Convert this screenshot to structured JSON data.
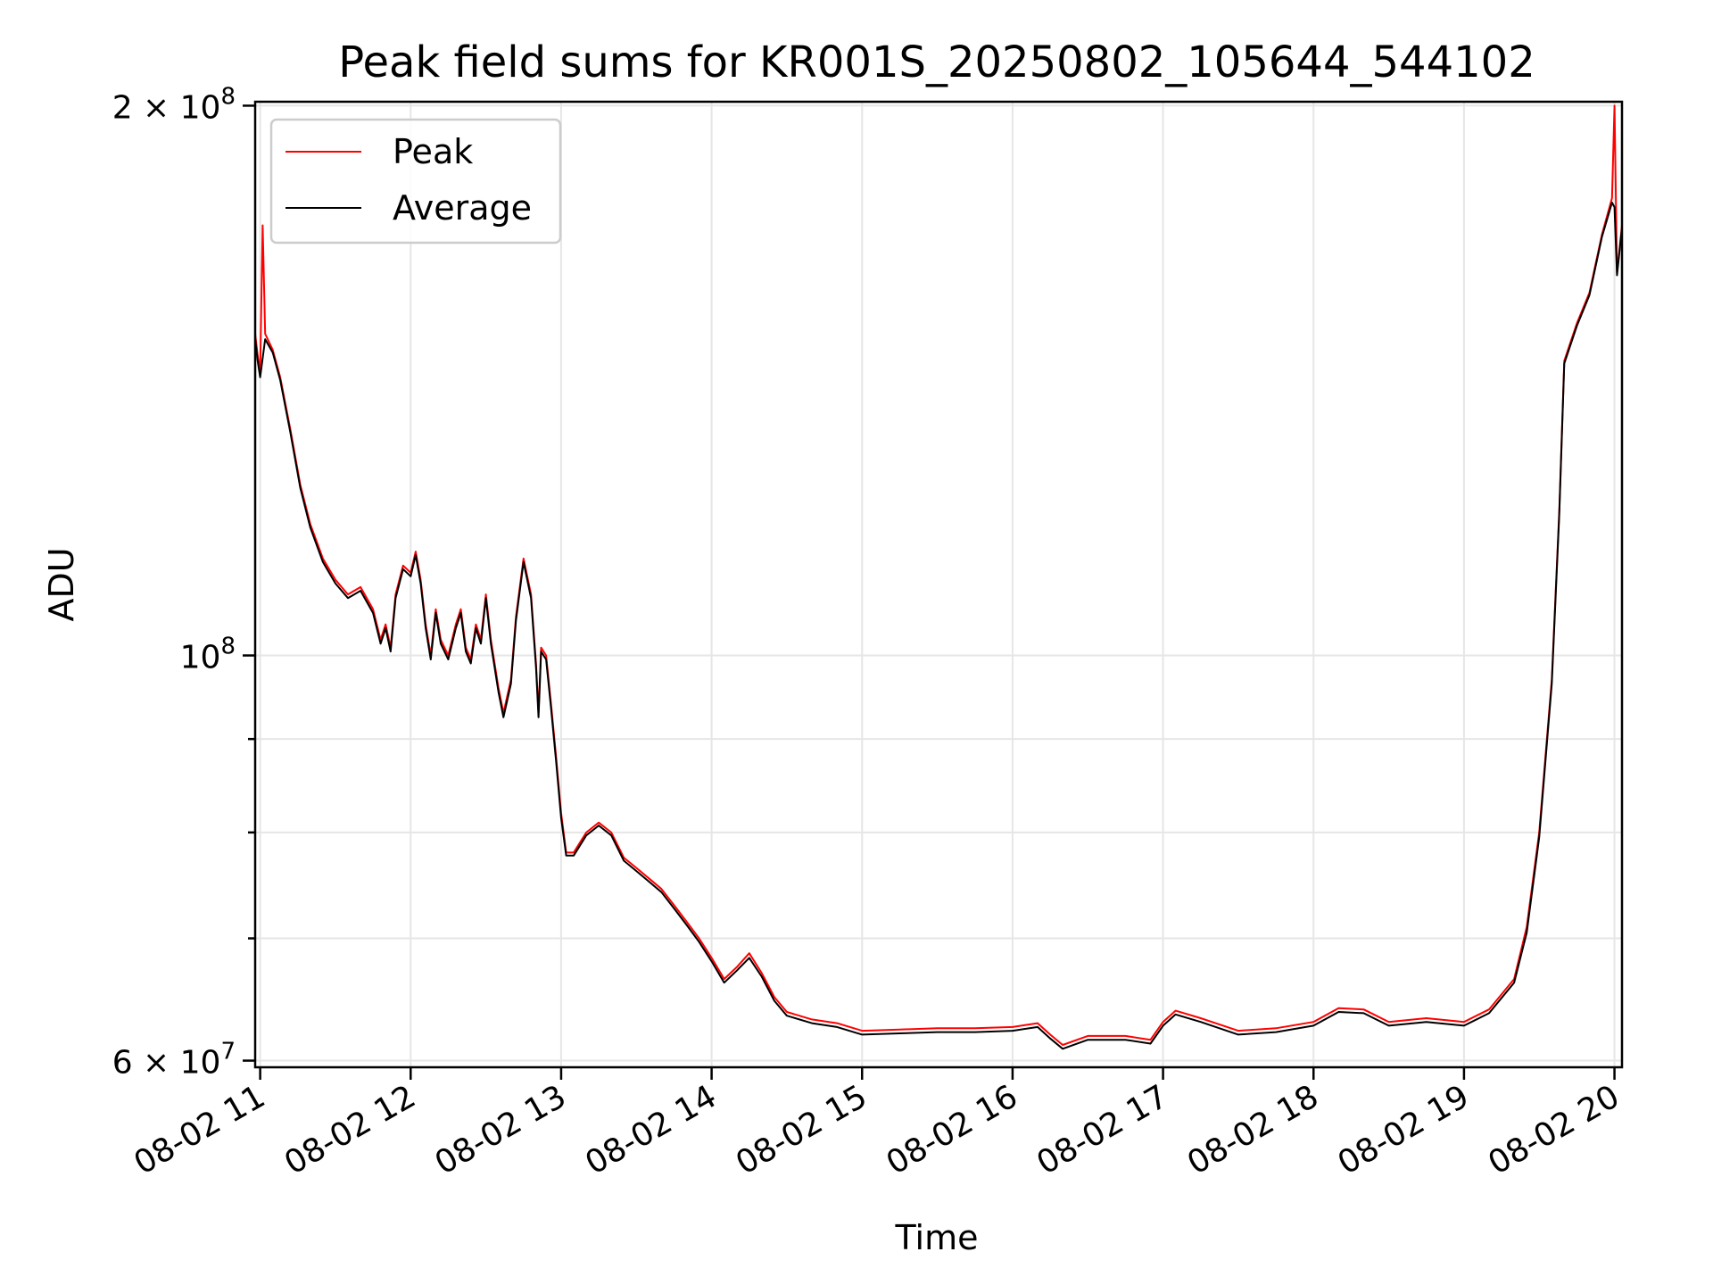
{
  "chart_data": {
    "type": "line",
    "title": "Peak field sums for KR001S_20250802_105644_544102",
    "xlabel": "Time",
    "ylabel": "ADU",
    "yscale": "log",
    "xlim": [
      "2025-08-02 10:58",
      "2025-08-02 20:03"
    ],
    "ylim": [
      59500000,
      201000000
    ],
    "grid": true,
    "legend_position": "top-left",
    "x_ticks": [
      "08-02 11",
      "08-02 12",
      "08-02 13",
      "08-02 14",
      "08-02 15",
      "08-02 16",
      "08-02 17",
      "08-02 18",
      "08-02 19",
      "08-02 20"
    ],
    "y_major_ticks": [
      {
        "value": 200000000,
        "base": "2 × 10",
        "exp": "8"
      },
      {
        "value": 100000000,
        "base": "10",
        "exp": "8"
      },
      {
        "value": 60000000,
        "base": "6 × 10",
        "exp": "7"
      }
    ],
    "y_minor_ticks": [
      70000000,
      80000000,
      90000000
    ],
    "series": [
      {
        "name": "Peak",
        "color": "#ff0000",
        "points": [
          [
            "2025-08-02 10:58",
            150000000
          ],
          [
            "2025-08-02 10:59",
            146000000
          ],
          [
            "2025-08-02 11:00",
            143000000
          ],
          [
            "2025-08-02 11:01",
            172000000
          ],
          [
            "2025-08-02 11:02",
            150000000
          ],
          [
            "2025-08-02 11:05",
            147000000
          ],
          [
            "2025-08-02 11:08",
            142000000
          ],
          [
            "2025-08-02 11:12",
            133000000
          ],
          [
            "2025-08-02 11:16",
            124000000
          ],
          [
            "2025-08-02 11:20",
            118000000
          ],
          [
            "2025-08-02 11:25",
            113000000
          ],
          [
            "2025-08-02 11:30",
            110000000
          ],
          [
            "2025-08-02 11:35",
            108000000
          ],
          [
            "2025-08-02 11:40",
            109000000
          ],
          [
            "2025-08-02 11:45",
            106000000
          ],
          [
            "2025-08-02 11:48",
            102000000
          ],
          [
            "2025-08-02 11:50",
            104000000
          ],
          [
            "2025-08-02 11:52",
            101000000
          ],
          [
            "2025-08-02 11:54",
            108000000
          ],
          [
            "2025-08-02 11:57",
            112000000
          ],
          [
            "2025-08-02 12:00",
            111000000
          ],
          [
            "2025-08-02 12:02",
            114000000
          ],
          [
            "2025-08-02 12:04",
            110000000
          ],
          [
            "2025-08-02 12:06",
            104000000
          ],
          [
            "2025-08-02 12:08",
            100000000
          ],
          [
            "2025-08-02 12:10",
            106000000
          ],
          [
            "2025-08-02 12:12",
            102000000
          ],
          [
            "2025-08-02 12:15",
            100000000
          ],
          [
            "2025-08-02 12:18",
            104000000
          ],
          [
            "2025-08-02 12:20",
            106000000
          ],
          [
            "2025-08-02 12:22",
            101000000
          ],
          [
            "2025-08-02 12:24",
            99500000
          ],
          [
            "2025-08-02 12:26",
            104000000
          ],
          [
            "2025-08-02 12:28",
            102000000
          ],
          [
            "2025-08-02 12:30",
            108000000
          ],
          [
            "2025-08-02 12:32",
            102000000
          ],
          [
            "2025-08-02 12:35",
            96000000
          ],
          [
            "2025-08-02 12:37",
            93000000
          ],
          [
            "2025-08-02 12:40",
            97000000
          ],
          [
            "2025-08-02 12:42",
            105000000
          ],
          [
            "2025-08-02 12:45",
            113000000
          ],
          [
            "2025-08-02 12:48",
            108000000
          ],
          [
            "2025-08-02 12:50",
            99000000
          ],
          [
            "2025-08-02 12:51",
            93000000
          ],
          [
            "2025-08-02 12:52",
            101000000
          ],
          [
            "2025-08-02 12:54",
            100000000
          ],
          [
            "2025-08-02 12:56",
            94000000
          ],
          [
            "2025-08-02 12:58",
            88000000
          ],
          [
            "2025-08-02 13:00",
            82000000
          ],
          [
            "2025-08-02 13:02",
            78000000
          ],
          [
            "2025-08-02 13:05",
            78000000
          ],
          [
            "2025-08-02 13:10",
            80000000
          ],
          [
            "2025-08-02 13:15",
            81000000
          ],
          [
            "2025-08-02 13:20",
            80000000
          ],
          [
            "2025-08-02 13:25",
            77500000
          ],
          [
            "2025-08-02 13:30",
            76500000
          ],
          [
            "2025-08-02 13:35",
            75500000
          ],
          [
            "2025-08-02 13:40",
            74500000
          ],
          [
            "2025-08-02 13:45",
            73000000
          ],
          [
            "2025-08-02 13:50",
            71500000
          ],
          [
            "2025-08-02 13:55",
            70000000
          ],
          [
            "2025-08-02 14:00",
            68300000
          ],
          [
            "2025-08-02 14:05",
            66500000
          ],
          [
            "2025-08-02 14:10",
            67500000
          ],
          [
            "2025-08-02 14:15",
            68700000
          ],
          [
            "2025-08-02 14:20",
            67000000
          ],
          [
            "2025-08-02 14:25",
            65000000
          ],
          [
            "2025-08-02 14:30",
            63800000
          ],
          [
            "2025-08-02 14:40",
            63200000
          ],
          [
            "2025-08-02 14:50",
            62900000
          ],
          [
            "2025-08-02 15:00",
            62300000
          ],
          [
            "2025-08-02 15:15",
            62400000
          ],
          [
            "2025-08-02 15:30",
            62500000
          ],
          [
            "2025-08-02 15:45",
            62500000
          ],
          [
            "2025-08-02 16:00",
            62600000
          ],
          [
            "2025-08-02 16:10",
            62900000
          ],
          [
            "2025-08-02 16:15",
            62000000
          ],
          [
            "2025-08-02 16:20",
            61200000
          ],
          [
            "2025-08-02 16:30",
            61900000
          ],
          [
            "2025-08-02 16:45",
            61900000
          ],
          [
            "2025-08-02 16:55",
            61600000
          ],
          [
            "2025-08-02 17:00",
            63000000
          ],
          [
            "2025-08-02 17:05",
            63900000
          ],
          [
            "2025-08-02 17:15",
            63300000
          ],
          [
            "2025-08-02 17:30",
            62300000
          ],
          [
            "2025-08-02 17:45",
            62500000
          ],
          [
            "2025-08-02 18:00",
            63000000
          ],
          [
            "2025-08-02 18:10",
            64100000
          ],
          [
            "2025-08-02 18:20",
            64000000
          ],
          [
            "2025-08-02 18:30",
            63000000
          ],
          [
            "2025-08-02 18:45",
            63300000
          ],
          [
            "2025-08-02 19:00",
            63000000
          ],
          [
            "2025-08-02 19:10",
            64000000
          ],
          [
            "2025-08-02 19:20",
            66500000
          ],
          [
            "2025-08-02 19:25",
            71000000
          ],
          [
            "2025-08-02 19:30",
            80000000
          ],
          [
            "2025-08-02 19:35",
            97000000
          ],
          [
            "2025-08-02 19:38",
            120000000
          ],
          [
            "2025-08-02 19:40",
            145000000
          ],
          [
            "2025-08-02 19:45",
            152000000
          ],
          [
            "2025-08-02 19:50",
            158000000
          ],
          [
            "2025-08-02 19:55",
            170000000
          ],
          [
            "2025-08-02 19:59",
            178000000
          ],
          [
            "2025-08-02 20:00",
            200000000
          ],
          [
            "2025-08-02 20:01",
            162000000
          ],
          [
            "2025-08-02 20:03",
            172000000
          ]
        ]
      },
      {
        "name": "Average",
        "color": "#000000",
        "points": [
          [
            "2025-08-02 10:58",
            149000000
          ],
          [
            "2025-08-02 10:59",
            145000000
          ],
          [
            "2025-08-02 11:00",
            142000000
          ],
          [
            "2025-08-02 11:02",
            149000000
          ],
          [
            "2025-08-02 11:05",
            146500000
          ],
          [
            "2025-08-02 11:08",
            141500000
          ],
          [
            "2025-08-02 11:12",
            132500000
          ],
          [
            "2025-08-02 11:16",
            123500000
          ],
          [
            "2025-08-02 11:20",
            117500000
          ],
          [
            "2025-08-02 11:25",
            112500000
          ],
          [
            "2025-08-02 11:30",
            109500000
          ],
          [
            "2025-08-02 11:35",
            107500000
          ],
          [
            "2025-08-02 11:40",
            108500000
          ],
          [
            "2025-08-02 11:45",
            105500000
          ],
          [
            "2025-08-02 11:48",
            101500000
          ],
          [
            "2025-08-02 11:50",
            103500000
          ],
          [
            "2025-08-02 11:52",
            100500000
          ],
          [
            "2025-08-02 11:54",
            107500000
          ],
          [
            "2025-08-02 11:57",
            111500000
          ],
          [
            "2025-08-02 12:00",
            110500000
          ],
          [
            "2025-08-02 12:02",
            113500000
          ],
          [
            "2025-08-02 12:04",
            109500000
          ],
          [
            "2025-08-02 12:06",
            103500000
          ],
          [
            "2025-08-02 12:08",
            99500000
          ],
          [
            "2025-08-02 12:10",
            105500000
          ],
          [
            "2025-08-02 12:12",
            101500000
          ],
          [
            "2025-08-02 12:15",
            99500000
          ],
          [
            "2025-08-02 12:18",
            103500000
          ],
          [
            "2025-08-02 12:20",
            105500000
          ],
          [
            "2025-08-02 12:22",
            100500000
          ],
          [
            "2025-08-02 12:24",
            99000000
          ],
          [
            "2025-08-02 12:26",
            103500000
          ],
          [
            "2025-08-02 12:28",
            101500000
          ],
          [
            "2025-08-02 12:30",
            107500000
          ],
          [
            "2025-08-02 12:32",
            101500000
          ],
          [
            "2025-08-02 12:35",
            95500000
          ],
          [
            "2025-08-02 12:37",
            92500000
          ],
          [
            "2025-08-02 12:40",
            96500000
          ],
          [
            "2025-08-02 12:42",
            104500000
          ],
          [
            "2025-08-02 12:45",
            112500000
          ],
          [
            "2025-08-02 12:48",
            107500000
          ],
          [
            "2025-08-02 12:50",
            98500000
          ],
          [
            "2025-08-02 12:51",
            92500000
          ],
          [
            "2025-08-02 12:52",
            100500000
          ],
          [
            "2025-08-02 12:54",
            99500000
          ],
          [
            "2025-08-02 12:56",
            93500000
          ],
          [
            "2025-08-02 12:58",
            87500000
          ],
          [
            "2025-08-02 13:00",
            81500000
          ],
          [
            "2025-08-02 13:02",
            77700000
          ],
          [
            "2025-08-02 13:05",
            77700000
          ],
          [
            "2025-08-02 13:10",
            79700000
          ],
          [
            "2025-08-02 13:15",
            80700000
          ],
          [
            "2025-08-02 13:20",
            79700000
          ],
          [
            "2025-08-02 13:25",
            77200000
          ],
          [
            "2025-08-02 13:30",
            76200000
          ],
          [
            "2025-08-02 13:35",
            75200000
          ],
          [
            "2025-08-02 13:40",
            74200000
          ],
          [
            "2025-08-02 13:45",
            72700000
          ],
          [
            "2025-08-02 13:50",
            71200000
          ],
          [
            "2025-08-02 13:55",
            69700000
          ],
          [
            "2025-08-02 14:00",
            68000000
          ],
          [
            "2025-08-02 14:05",
            66200000
          ],
          [
            "2025-08-02 14:10",
            67200000
          ],
          [
            "2025-08-02 14:15",
            68300000
          ],
          [
            "2025-08-02 14:20",
            66700000
          ],
          [
            "2025-08-02 14:25",
            64700000
          ],
          [
            "2025-08-02 14:30",
            63500000
          ],
          [
            "2025-08-02 14:40",
            62900000
          ],
          [
            "2025-08-02 14:50",
            62600000
          ],
          [
            "2025-08-02 15:00",
            62000000
          ],
          [
            "2025-08-02 15:15",
            62100000
          ],
          [
            "2025-08-02 15:30",
            62200000
          ],
          [
            "2025-08-02 15:45",
            62200000
          ],
          [
            "2025-08-02 16:00",
            62300000
          ],
          [
            "2025-08-02 16:10",
            62600000
          ],
          [
            "2025-08-02 16:15",
            61700000
          ],
          [
            "2025-08-02 16:20",
            60900000
          ],
          [
            "2025-08-02 16:30",
            61600000
          ],
          [
            "2025-08-02 16:45",
            61600000
          ],
          [
            "2025-08-02 16:55",
            61300000
          ],
          [
            "2025-08-02 17:00",
            62700000
          ],
          [
            "2025-08-02 17:05",
            63600000
          ],
          [
            "2025-08-02 17:15",
            63000000
          ],
          [
            "2025-08-02 17:30",
            62000000
          ],
          [
            "2025-08-02 17:45",
            62200000
          ],
          [
            "2025-08-02 18:00",
            62700000
          ],
          [
            "2025-08-02 18:10",
            63800000
          ],
          [
            "2025-08-02 18:20",
            63700000
          ],
          [
            "2025-08-02 18:30",
            62700000
          ],
          [
            "2025-08-02 18:45",
            63000000
          ],
          [
            "2025-08-02 19:00",
            62700000
          ],
          [
            "2025-08-02 19:10",
            63700000
          ],
          [
            "2025-08-02 19:20",
            66200000
          ],
          [
            "2025-08-02 19:25",
            70500000
          ],
          [
            "2025-08-02 19:30",
            79500000
          ],
          [
            "2025-08-02 19:35",
            96500000
          ],
          [
            "2025-08-02 19:38",
            119500000
          ],
          [
            "2025-08-02 19:40",
            144500000
          ],
          [
            "2025-08-02 19:45",
            151500000
          ],
          [
            "2025-08-02 19:50",
            157500000
          ],
          [
            "2025-08-02 19:55",
            169500000
          ],
          [
            "2025-08-02 19:59",
            177000000
          ],
          [
            "2025-08-02 20:00",
            176000000
          ],
          [
            "2025-08-02 20:01",
            161500000
          ],
          [
            "2025-08-02 20:03",
            171500000
          ]
        ]
      }
    ]
  }
}
